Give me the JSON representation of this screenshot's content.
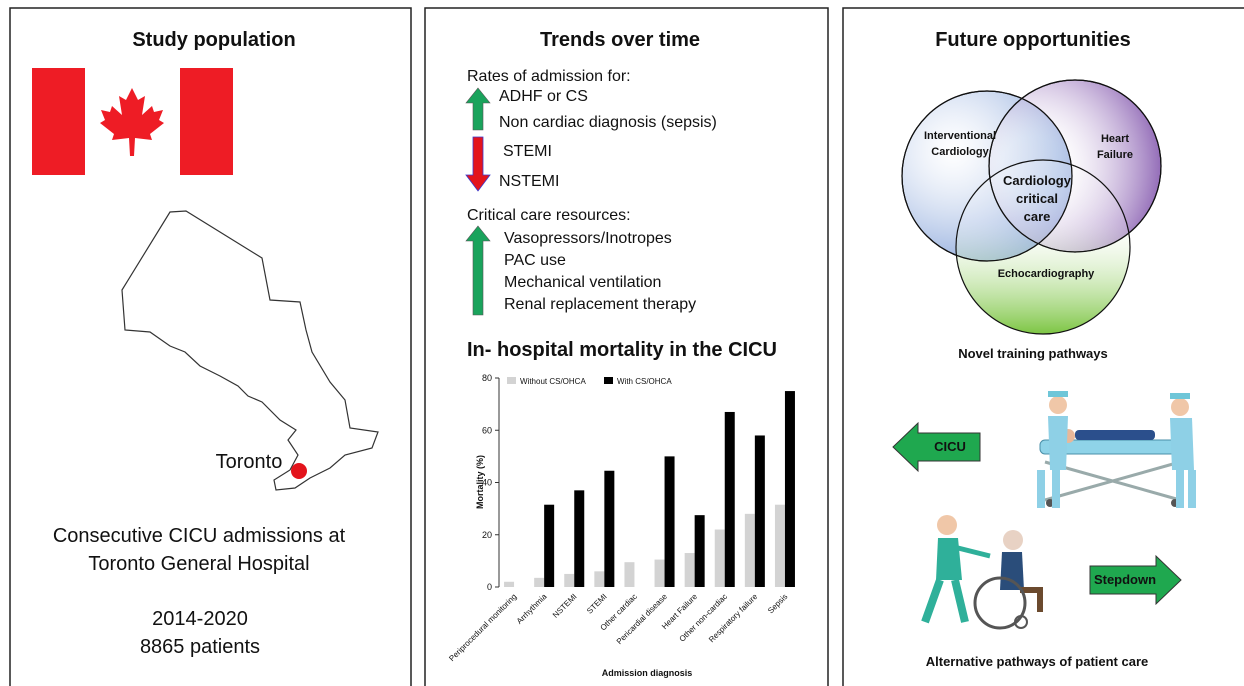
{
  "study_population": {
    "title": "Study population",
    "map_label": "Toronto",
    "description_line1": "Consecutive CICU admissions at",
    "description_line2": "Toronto General Hospital",
    "years": "2014-2020",
    "patients": "8865 patients"
  },
  "trends": {
    "title": "Trends over time",
    "admission_heading": "Rates of admission for:",
    "increased_admissions": [
      "ADHF or CS",
      "Non cardiac diagnosis (sepsis)"
    ],
    "decreased_admissions": [
      "STEMI",
      "NSTEMI"
    ],
    "resources_heading": "Critical care resources:",
    "increased_resources": [
      "Vasopressors/Inotropes",
      "PAC use",
      "Mechanical ventilation",
      "Renal replacement therapy"
    ]
  },
  "chart_data": {
    "type": "bar",
    "title": "In- hospital mortality in the CICU",
    "x_label": "Admission diagnosis",
    "y_label": "Mortality  (%)",
    "categories": [
      "Periprocedural monitoring",
      "Arrhythmia",
      "NSTEMI",
      "STEMI",
      "Other cardiac",
      "Pericardial disease",
      "Heart Failure",
      "Other non-cardiac",
      "Respiratory failure",
      "Sepsis"
    ],
    "series": [
      {
        "name": "Without CS/OHCA",
        "color": "#d3d3d3",
        "values": [
          2,
          3.5,
          5,
          6,
          9.5,
          10.5,
          13,
          22,
          28,
          31.5
        ]
      },
      {
        "name": "With CS/OHCA",
        "color": "#000000",
        "values": [
          null,
          31.5,
          37,
          44.5,
          null,
          50,
          27.5,
          67,
          58,
          75
        ]
      }
    ],
    "ylim": [
      0,
      80
    ],
    "yticks": [
      0,
      20,
      40,
      60,
      80
    ]
  },
  "future": {
    "title": "Future opportunities",
    "venn_interventional_1": "Interventional",
    "venn_interventional_2": "Cardiology",
    "venn_hf_1": "Heart",
    "venn_hf_2": "Failure",
    "venn_center_1": "Cardiology",
    "venn_center_2": "critical",
    "venn_center_3": "care",
    "venn_echo": "Echocardiography",
    "training_caption": "Novel training pathways",
    "arrow_left": "CICU",
    "arrow_right": "Stepdown",
    "care_caption": "Alternative pathways of patient care"
  }
}
